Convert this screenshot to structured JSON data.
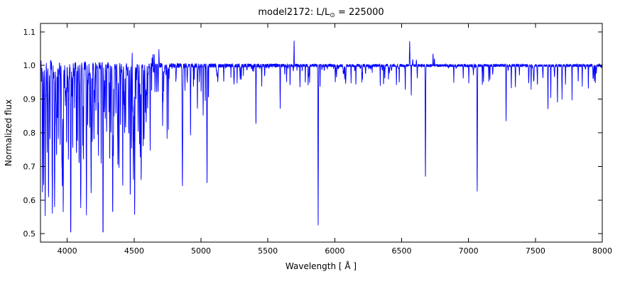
{
  "chart_data": {
    "type": "line",
    "title": {
      "prefix": "model2172: L/L",
      "sub": "⊙",
      "suffix": " = 225000"
    },
    "xlabel": "Wavelength [ Å ]",
    "ylabel": "Normalized flux",
    "xlim": [
      3800,
      8000
    ],
    "ylim": [
      0.475,
      1.125
    ],
    "xticks": [
      4000,
      4500,
      5000,
      5500,
      6000,
      6500,
      7000,
      7500,
      8000
    ],
    "yticks": [
      0.5,
      0.6,
      0.7,
      0.8,
      0.9,
      1.0,
      1.1
    ],
    "line_color": "#0000ff",
    "axes_color": "#000000",
    "background": "#ffffff",
    "baseline": 1.0,
    "legend": "none",
    "grid": false,
    "absorption_lines": [
      [
        3815,
        0.6
      ],
      [
        3824,
        0.72
      ],
      [
        3835,
        0.575
      ],
      [
        3850,
        0.78
      ],
      [
        3860,
        0.7
      ],
      [
        3871,
        0.8
      ],
      [
        3889,
        0.585
      ],
      [
        3905,
        0.82
      ],
      [
        3920,
        0.74
      ],
      [
        3933,
        0.8
      ],
      [
        3947,
        0.76
      ],
      [
        3964,
        0.72
      ],
      [
        3970,
        0.575
      ],
      [
        3995,
        0.77
      ],
      [
        4009,
        0.74
      ],
      [
        4026,
        0.615
      ],
      [
        4041,
        0.8
      ],
      [
        4069,
        0.74
      ],
      [
        4076,
        0.77
      ],
      [
        4089,
        0.7
      ],
      [
        4101,
        0.585,
        2.2
      ],
      [
        4116,
        0.76
      ],
      [
        4121,
        0.72
      ],
      [
        4144,
        0.7
      ],
      [
        4153,
        0.82
      ],
      [
        4169,
        0.84
      ],
      [
        4179,
        0.78
      ],
      [
        4187,
        0.8
      ],
      [
        4200,
        0.78
      ],
      [
        4215,
        0.86
      ],
      [
        4233,
        0.84
      ],
      [
        4254,
        0.85
      ],
      [
        4267,
        0.78
      ],
      [
        4276,
        0.86
      ],
      [
        4284,
        0.85
      ],
      [
        4317,
        0.83
      ],
      [
        4326,
        0.84
      ],
      [
        4340,
        0.565,
        2.2
      ],
      [
        4350,
        0.85
      ],
      [
        4364,
        0.86
      ],
      [
        4379,
        0.76
      ],
      [
        4387,
        0.7
      ],
      [
        4415,
        0.8
      ],
      [
        4437,
        0.85
      ],
      [
        4471,
        0.625
      ],
      [
        4481,
        0.76
      ],
      [
        4504,
        0.545
      ],
      [
        4530,
        0.82
      ],
      [
        4541,
        0.79
      ],
      [
        4553,
        0.72
      ],
      [
        4568,
        0.76
      ],
      [
        4575,
        0.8
      ],
      [
        4590,
        0.85
      ],
      [
        4601,
        0.87
      ],
      [
        4621,
        0.9
      ],
      [
        4631,
        0.92
      ],
      [
        4713,
        0.82
      ],
      [
        4861,
        0.645,
        2.2
      ],
      [
        4880,
        0.93
      ],
      [
        4922,
        0.79
      ],
      [
        4944,
        0.93
      ],
      [
        4973,
        0.9
      ],
      [
        5001,
        0.92
      ],
      [
        5016,
        0.85
      ],
      [
        5032,
        0.9
      ],
      [
        5045,
        0.645
      ],
      [
        5056,
        0.9
      ],
      [
        5170,
        0.95
      ],
      [
        5270,
        0.95
      ],
      [
        5411,
        0.825
      ],
      [
        5454,
        0.94
      ],
      [
        5592,
        0.875
      ],
      [
        5640,
        0.95
      ],
      [
        5666,
        0.94
      ],
      [
        5740,
        0.93
      ],
      [
        5780,
        0.95
      ],
      [
        5801,
        0.94
      ],
      [
        5812,
        0.95
      ],
      [
        5876,
        0.525
      ],
      [
        5890,
        0.94
      ],
      [
        6004,
        0.95
      ],
      [
        6074,
        0.96
      ],
      [
        6122,
        0.95
      ],
      [
        6158,
        0.94
      ],
      [
        6203,
        0.95
      ],
      [
        6340,
        0.94
      ],
      [
        6365,
        0.945
      ],
      [
        6402,
        0.96
      ],
      [
        6461,
        0.94
      ],
      [
        6482,
        0.95
      ],
      [
        6527,
        0.94
      ],
      [
        6572,
        0.915
      ],
      [
        6678,
        0.665
      ],
      [
        6890,
        0.95
      ],
      [
        7002,
        0.95
      ],
      [
        7065,
        0.62
      ],
      [
        7112,
        0.95
      ],
      [
        7160,
        0.96
      ],
      [
        7281,
        0.83
      ],
      [
        7320,
        0.93
      ],
      [
        7350,
        0.95
      ],
      [
        7468,
        0.93
      ],
      [
        7515,
        0.95
      ],
      [
        7594,
        0.87
      ],
      [
        7615,
        0.9
      ],
      [
        7665,
        0.89
      ],
      [
        7699,
        0.92
      ],
      [
        7725,
        0.94
      ],
      [
        7774,
        0.9
      ],
      [
        7820,
        0.95
      ],
      [
        7850,
        0.94
      ],
      [
        7896,
        0.93
      ],
      [
        7948,
        0.95
      ]
    ],
    "emission_lines": [
      [
        4486,
        1.05
      ],
      [
        4515,
        1.045
      ],
      [
        4597,
        1.03
      ],
      [
        4634,
        1.03
      ],
      [
        4641,
        1.035
      ],
      [
        4650,
        1.03
      ],
      [
        4658,
        1.02
      ],
      [
        4686,
        1.045
      ],
      [
        5696,
        1.075
      ],
      [
        6560,
        1.07,
        1.6
      ],
      [
        6583,
        1.02
      ],
      [
        6610,
        1.02
      ],
      [
        6735,
        1.035
      ],
      [
        6745,
        1.02
      ]
    ],
    "noise": {
      "seed": 2172,
      "amp_blue": 0.013,
      "amp_red": 0.004,
      "decay": 700,
      "forest_blue": {
        "range": [
          3805,
          4760
        ],
        "count": 160,
        "max_depth": 0.22
      },
      "forest_red": {
        "range": [
          4760,
          8000
        ],
        "count": 90,
        "max_depth": 0.05
      }
    }
  }
}
